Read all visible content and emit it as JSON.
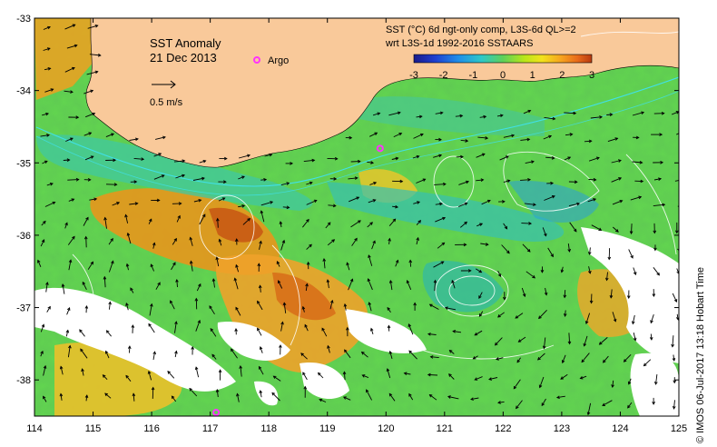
{
  "title": {
    "product": "SST Anomaly",
    "date": "21 Dec 2013"
  },
  "legend": {
    "line1": "SST (°C) 6d ngt-only comp, L3S-6d QL>=2",
    "line2": "wrt L3S-1d 1992-2016 SSTAARS",
    "ticks": [
      "-3",
      "-2",
      "-1",
      "0",
      "1",
      "2",
      "3"
    ],
    "colors": [
      "#1a1a8a",
      "#1e3fd0",
      "#1f8ee8",
      "#2ec8c8",
      "#5ed05a",
      "#b8e61a",
      "#f2e21c",
      "#f6a21e",
      "#e86a1a",
      "#b83a10"
    ]
  },
  "argo_label": "Argo",
  "argo_color": "#ff33ff",
  "velocity_label": "0.5 m/s",
  "credit": "© IMOS 06-Jul-2017 13:18 Hobart Time",
  "x_ticks": [
    "114",
    "115",
    "116",
    "117",
    "118",
    "119",
    "120",
    "121",
    "122",
    "123",
    "124",
    "125"
  ],
  "y_ticks": [
    "-33",
    "-34",
    "-35",
    "-36",
    "-37",
    "-38"
  ],
  "map_extent": {
    "lon": [
      114,
      125
    ],
    "lat": [
      -38.5,
      -33
    ]
  },
  "land_color": "#f9c99a",
  "argo_floats": [
    {
      "lon": 119.9,
      "lat": -34.8
    },
    {
      "lon": 117.1,
      "lat": -38.45
    }
  ]
}
